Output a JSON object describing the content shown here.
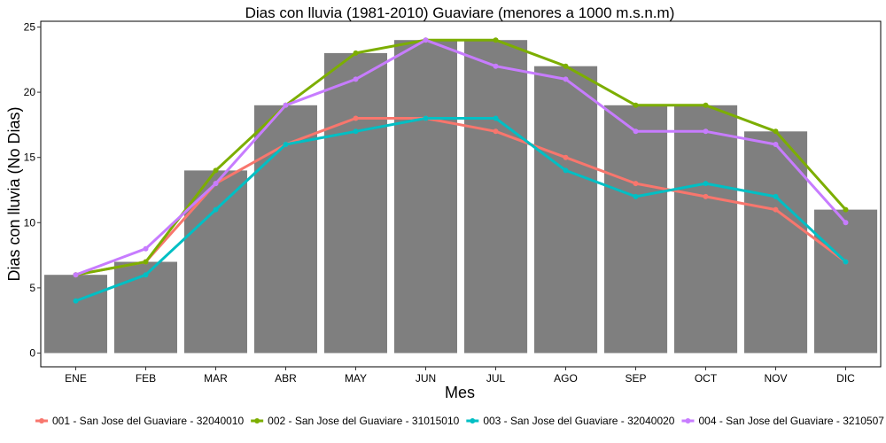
{
  "chart_data": {
    "type": "bar",
    "title": "Dias con lluvia (1981-2010) Guaviare (menores a 1000 m.s.n.m)",
    "xlabel": "Mes",
    "ylabel": "Dias con lluvia (No Dias)",
    "ylim": [
      0,
      25
    ],
    "yticks": [
      0,
      5,
      10,
      15,
      20,
      25
    ],
    "grid": false,
    "legend_position": "bottom",
    "categories": [
      "ENE",
      "FEB",
      "MAR",
      "ABR",
      "MAY",
      "JUN",
      "JUL",
      "AGO",
      "SEP",
      "OCT",
      "NOV",
      "DIC"
    ],
    "bars": {
      "color": "#7f7f7f",
      "values": [
        6,
        7,
        14,
        19,
        23,
        24,
        24,
        22,
        19,
        19,
        17,
        11
      ]
    },
    "series": [
      {
        "name": "001 - San Jose del Guaviare - 32040010",
        "color": "#f8766d",
        "values": [
          6,
          7,
          13,
          16,
          18,
          18,
          17,
          15,
          13,
          12,
          11,
          7
        ]
      },
      {
        "name": "002 - San Jose del Guaviare - 31015010",
        "color": "#7cae00",
        "values": [
          6,
          7,
          14,
          19,
          23,
          24,
          24,
          22,
          19,
          19,
          17,
          11
        ]
      },
      {
        "name": "003 - San Jose del Guaviare - 32040020",
        "color": "#00bfc4",
        "values": [
          4,
          6,
          11,
          16,
          17,
          18,
          18,
          14,
          12,
          13,
          12,
          7
        ]
      },
      {
        "name": "004 - San Jose del Guaviare - 3210507",
        "color": "#c77cff",
        "values": [
          6,
          8,
          13,
          19,
          21,
          24,
          22,
          21,
          17,
          17,
          16,
          10
        ]
      }
    ]
  }
}
